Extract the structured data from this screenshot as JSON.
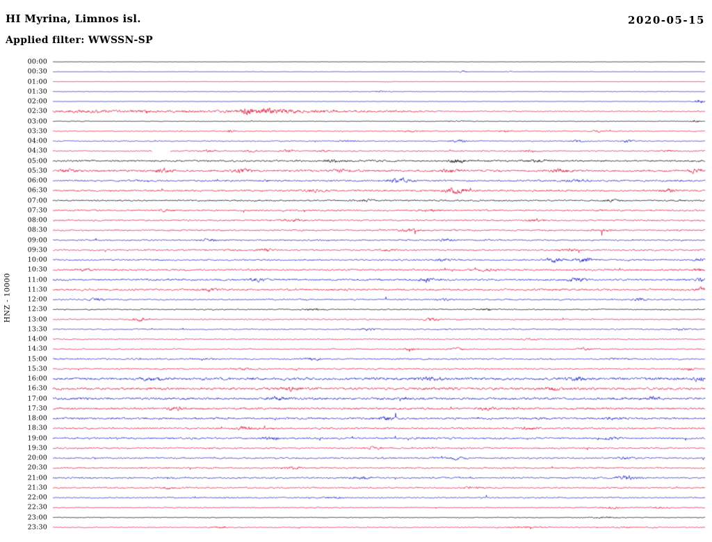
{
  "header": {
    "station_title": "HI Myrina, Limnos isl.",
    "date": "2020-05-15",
    "filter_label": "Applied filter: WWSSN-SP"
  },
  "axis": {
    "channel_label": "HNZ - 10000"
  },
  "colors": {
    "red": "#e0143c",
    "blue": "#1e22c8",
    "black": "#000000"
  },
  "chart_data": {
    "type": "helicorder",
    "title": "HI Myrina, Limnos isl.",
    "date": "2020-05-15",
    "filter": "WWSSN-SP",
    "channel": "HNZ",
    "scale": 10000,
    "row_interval_minutes": 30,
    "start_time": "00:00",
    "end_time": "23:30",
    "rows": [
      {
        "label": "00:00",
        "color": "black",
        "amp": 0.4,
        "events": []
      },
      {
        "label": "00:30",
        "color": "blue",
        "amp": 0.5,
        "events": [
          [
            0.63,
            2.5,
            0.006
          ],
          [
            0.7,
            1.5,
            0.004
          ]
        ]
      },
      {
        "label": "01:00",
        "color": "red",
        "amp": 0.4,
        "events": [
          [
            0.52,
            1.2,
            0.01
          ]
        ]
      },
      {
        "label": "01:30",
        "color": "blue",
        "amp": 0.6,
        "events": [
          [
            0.505,
            2.2,
            0.012
          ]
        ]
      },
      {
        "label": "02:00",
        "color": "blue",
        "amp": 0.6,
        "events": [
          [
            0.991,
            5.5,
            0.007
          ]
        ]
      },
      {
        "label": "02:30",
        "color": "red",
        "amp": 1.2,
        "flat": [
          [
            0,
            0.285,
            3.2
          ]
        ],
        "events": [
          [
            0.297,
            11,
            0.01
          ],
          [
            0.325,
            8.5,
            0.014
          ],
          [
            0.36,
            5.5,
            0.02
          ],
          [
            0.42,
            3,
            0.035
          ],
          [
            0.52,
            1.8,
            0.06
          ]
        ]
      },
      {
        "label": "03:00",
        "color": "black",
        "amp": 0.8,
        "events": [
          [
            0.985,
            3.5,
            0.007
          ],
          [
            0.62,
            1.2,
            0.02
          ]
        ]
      },
      {
        "label": "03:30",
        "color": "red",
        "amp": 1.2,
        "events": [
          [
            0.271,
            3.8,
            0.008
          ],
          [
            0.548,
            2.2,
            0.02
          ],
          [
            0.692,
            3.2,
            0.01
          ],
          [
            0.836,
            1.8,
            0.01
          ]
        ]
      },
      {
        "label": "04:00",
        "color": "blue",
        "amp": 1.3,
        "events": [
          [
            0.452,
            2.2,
            0.015
          ],
          [
            0.623,
            2.8,
            0.012
          ],
          [
            0.804,
            2.2,
            0.012
          ],
          [
            0.879,
            2.8,
            0.01
          ]
        ]
      },
      {
        "label": "04:30",
        "color": "red",
        "amp": 1.6,
        "gaps": [
          [
            0.152,
            0.18
          ]
        ],
        "events": [
          [
            0.239,
            2.2,
            0.012
          ],
          [
            0.303,
            2.2,
            0.012
          ],
          [
            0.361,
            2.2,
            0.012
          ],
          [
            0.415,
            2.2,
            0.012
          ],
          [
            0.729,
            1.8,
            0.015
          ],
          [
            0.942,
            1.8,
            0.012
          ]
        ]
      },
      {
        "label": "05:00",
        "color": "black",
        "amp": 2.2,
        "events": [
          [
            0.431,
            2.5,
            0.015
          ],
          [
            0.617,
            4.5,
            0.013
          ],
          [
            0.74,
            3,
            0.015
          ]
        ]
      },
      {
        "label": "05:30",
        "color": "red",
        "amp": 2.6,
        "events": [
          [
            0.02,
            3.8,
            0.012
          ],
          [
            0.17,
            4.5,
            0.014
          ],
          [
            0.292,
            3.5,
            0.014
          ],
          [
            0.441,
            3,
            0.015
          ],
          [
            0.607,
            3.5,
            0.015
          ],
          [
            0.777,
            4,
            0.014
          ],
          [
            0.985,
            4.5,
            0.01
          ]
        ]
      },
      {
        "label": "06:00",
        "color": "blue",
        "amp": 2.2,
        "events": [
          [
            0.532,
            5.5,
            0.016
          ],
          [
            0.804,
            3.5,
            0.015
          ]
        ]
      },
      {
        "label": "06:30",
        "color": "red",
        "amp": 2.3,
        "events": [
          [
            0.399,
            3,
            0.015
          ],
          [
            0.617,
            6,
            0.018
          ],
          [
            0.942,
            2.5,
            0.012
          ]
        ]
      },
      {
        "label": "07:00",
        "color": "black",
        "amp": 1.9,
        "events": [
          [
            0.473,
            2.2,
            0.015
          ],
          [
            0.857,
            2.2,
            0.015
          ]
        ]
      },
      {
        "label": "07:30",
        "color": "red",
        "amp": 2.0,
        "events": [
          [
            0.175,
            2.2,
            0.015
          ],
          [
            0.58,
            2.8,
            0.015
          ]
        ]
      },
      {
        "label": "08:00",
        "color": "red",
        "amp": 2.0,
        "events": [
          [
            0.367,
            2.2,
            0.015
          ],
          [
            0.74,
            2.2,
            0.015
          ]
        ]
      },
      {
        "label": "08:30",
        "color": "red",
        "amp": 2.0,
        "events": [
          [
            0.548,
            2.2,
            0.015
          ],
          [
            0.846,
            2.8,
            0.012
          ]
        ]
      },
      {
        "label": "09:00",
        "color": "blue",
        "amp": 1.9,
        "events": [
          [
            0.239,
            2.2,
            0.015
          ],
          [
            0.601,
            2.8,
            0.014
          ]
        ]
      },
      {
        "label": "09:30",
        "color": "red",
        "amp": 1.9,
        "events": [
          [
            0.324,
            3.5,
            0.01
          ],
          [
            0.516,
            2.2,
            0.015
          ],
          [
            0.793,
            2.2,
            0.015
          ]
        ]
      },
      {
        "label": "10:00",
        "color": "blue",
        "amp": 2.0,
        "events": [
          [
            0.601,
            2.8,
            0.014
          ],
          [
            0.772,
            5,
            0.012
          ],
          [
            0.814,
            5.5,
            0.013
          ],
          [
            0.99,
            3.5,
            0.008
          ]
        ]
      },
      {
        "label": "10:30",
        "color": "red",
        "amp": 2.2,
        "events": [
          [
            0.047,
            2.8,
            0.012
          ],
          [
            0.665,
            2.8,
            0.014
          ],
          [
            0.99,
            4,
            0.008
          ]
        ]
      },
      {
        "label": "11:00",
        "color": "blue",
        "amp": 2.4,
        "events": [
          [
            0.313,
            3.5,
            0.014
          ],
          [
            0.575,
            3.5,
            0.014
          ],
          [
            0.804,
            3,
            0.014
          ],
          [
            0.993,
            4,
            0.007
          ]
        ]
      },
      {
        "label": "11:30",
        "color": "red",
        "amp": 2.4,
        "events": [
          [
            0.239,
            3,
            0.014
          ],
          [
            0.993,
            4,
            0.007
          ]
        ]
      },
      {
        "label": "12:00",
        "color": "blue",
        "amp": 1.7,
        "events": [
          [
            0.068,
            2.8,
            0.012
          ],
          [
            0.601,
            2.2,
            0.014
          ],
          [
            0.9,
            3,
            0.012
          ]
        ]
      },
      {
        "label": "12:30",
        "color": "black",
        "amp": 1.5,
        "events": [
          [
            0.399,
            2.2,
            0.014
          ],
          [
            0.665,
            2.2,
            0.014
          ]
        ]
      },
      {
        "label": "13:00",
        "color": "red",
        "amp": 1.6,
        "events": [
          [
            0.132,
            2.8,
            0.012
          ],
          [
            0.58,
            3.8,
            0.011
          ]
        ]
      },
      {
        "label": "13:30",
        "color": "blue",
        "amp": 1.6,
        "events": [
          [
            0.484,
            2.2,
            0.014
          ],
          [
            0.964,
            2.2,
            0.012
          ]
        ]
      },
      {
        "label": "14:00",
        "color": "red",
        "amp": 1.3,
        "events": [
          [
            0.729,
            1.8,
            0.015
          ]
        ]
      },
      {
        "label": "14:30",
        "color": "red",
        "amp": 1.5,
        "events": [
          [
            0.548,
            2.8,
            0.012
          ],
          [
            0.617,
            2.8,
            0.012
          ],
          [
            0.814,
            2.2,
            0.014
          ]
        ]
      },
      {
        "label": "15:00",
        "color": "blue",
        "amp": 1.9,
        "events": [
          [
            0.399,
            2.8,
            0.013
          ],
          [
            0.868,
            2.2,
            0.014
          ]
        ]
      },
      {
        "label": "15:30",
        "color": "red",
        "amp": 1.9,
        "events": [
          [
            0.292,
            2.2,
            0.014
          ],
          [
            0.974,
            2.8,
            0.01
          ]
        ]
      },
      {
        "label": "16:00",
        "color": "blue",
        "amp": 3.2,
        "events": [
          [
            0.154,
            4,
            0.014
          ],
          [
            0.58,
            3.5,
            0.014
          ],
          [
            0.804,
            4,
            0.014
          ],
          [
            0.99,
            4,
            0.008
          ]
        ]
      },
      {
        "label": "16:30",
        "color": "red",
        "amp": 3.0,
        "events": [
          [
            0.367,
            4,
            0.014
          ],
          [
            0.761,
            3.5,
            0.014
          ]
        ]
      },
      {
        "label": "17:00",
        "color": "blue",
        "amp": 3.0,
        "events": [
          [
            0.345,
            4,
            0.014
          ],
          [
            0.921,
            4,
            0.012
          ]
        ]
      },
      {
        "label": "17:30",
        "color": "red",
        "amp": 2.6,
        "events": [
          [
            0.186,
            2.8,
            0.014
          ],
          [
            0.665,
            2.8,
            0.014
          ]
        ]
      },
      {
        "label": "18:00",
        "color": "blue",
        "amp": 2.6,
        "events": [
          [
            0.511,
            3.5,
            0.014
          ],
          [
            0.857,
            2.8,
            0.014
          ]
        ]
      },
      {
        "label": "18:30",
        "color": "red",
        "amp": 2.2,
        "events": [
          [
            0.292,
            2.8,
            0.014
          ],
          [
            0.729,
            2.8,
            0.014
          ]
        ]
      },
      {
        "label": "19:00",
        "color": "blue",
        "amp": 2.2,
        "events": [
          [
            0.335,
            3,
            0.013
          ],
          [
            0.857,
            2.8,
            0.013
          ]
        ]
      },
      {
        "label": "19:30",
        "color": "red",
        "amp": 1.9,
        "events": [
          [
            0.495,
            2.2,
            0.014
          ]
        ]
      },
      {
        "label": "20:00",
        "color": "blue",
        "amp": 2.0,
        "events": [
          [
            0.623,
            3,
            0.013
          ],
          [
            0.879,
            2.8,
            0.013
          ]
        ]
      },
      {
        "label": "20:30",
        "color": "red",
        "amp": 1.9,
        "events": [
          [
            0.367,
            2.2,
            0.014
          ]
        ]
      },
      {
        "label": "21:00",
        "color": "blue",
        "amp": 2.0,
        "events": [
          [
            0.473,
            2.8,
            0.013
          ],
          [
            0.879,
            3.5,
            0.013
          ]
        ]
      },
      {
        "label": "21:30",
        "color": "red",
        "amp": 1.8,
        "events": [
          [
            0.175,
            2.8,
            0.012
          ],
          [
            0.644,
            2.2,
            0.014
          ]
        ]
      },
      {
        "label": "22:00",
        "color": "blue",
        "amp": 1.6,
        "events": [
          [
            0.431,
            2.2,
            0.014
          ]
        ]
      },
      {
        "label": "22:30",
        "color": "red",
        "amp": 1.2,
        "events": [
          [
            0.857,
            2.2,
            0.02
          ],
          [
            0.932,
            2.2,
            0.015
          ]
        ]
      },
      {
        "label": "23:00",
        "color": "black",
        "amp": 0.9,
        "events": [
          [
            0.846,
            1.8,
            0.02
          ]
        ]
      },
      {
        "label": "23:30",
        "color": "red",
        "amp": 1.2,
        "events": [
          [
            0.26,
            2.2,
            0.013
          ],
          [
            0.729,
            1.8,
            0.03
          ],
          [
            0.879,
            1.8,
            0.015
          ]
        ]
      }
    ]
  }
}
